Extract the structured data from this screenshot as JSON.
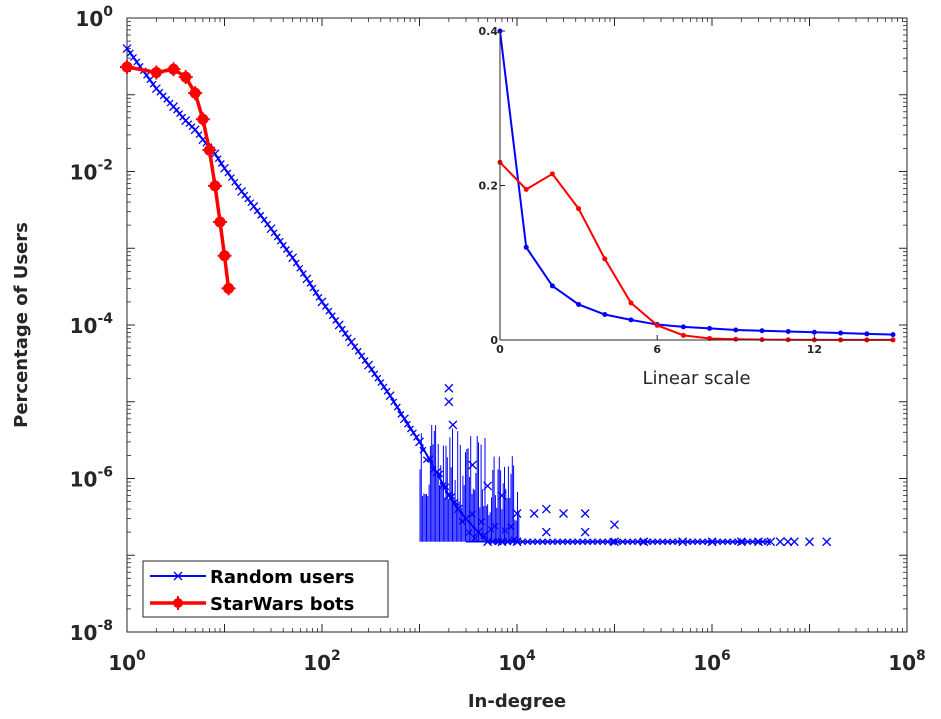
{
  "chart_data": [
    {
      "type": "line",
      "xlabel": "In-degree",
      "ylabel": "Percentage of Users",
      "xscale": "log",
      "yscale": "log",
      "xlim": [
        1,
        100000000
      ],
      "ylim": [
        1e-08,
        1
      ],
      "x_ticks": [
        {
          "base": "10",
          "exp": "0",
          "value": 1
        },
        {
          "base": "10",
          "exp": "2",
          "value": 100
        },
        {
          "base": "10",
          "exp": "4",
          "value": 10000
        },
        {
          "base": "10",
          "exp": "6",
          "value": 1000000
        },
        {
          "base": "10",
          "exp": "8",
          "value": 100000000
        }
      ],
      "y_ticks": [
        {
          "base": "10",
          "exp": "0",
          "value": 1
        },
        {
          "base": "10",
          "exp": "-2",
          "value": 0.01
        },
        {
          "base": "10",
          "exp": "-4",
          "value": 0.0001
        },
        {
          "base": "10",
          "exp": "-6",
          "value": 1e-06
        },
        {
          "base": "10",
          "exp": "-8",
          "value": 1e-08
        }
      ],
      "grid": false,
      "legend_position": "bottom-left",
      "series": [
        {
          "name": "Random users",
          "color": "#0000ff",
          "marker": "x",
          "x": [
            1,
            2,
            3,
            4,
            5,
            6,
            8,
            10,
            15,
            20,
            30,
            50,
            70,
            100,
            150,
            200,
            300,
            500,
            700,
            1000,
            1500,
            2000,
            2500,
            3000,
            4000,
            5000,
            7000,
            10000
          ],
          "y": [
            0.4,
            0.12,
            0.07,
            0.046,
            0.035,
            0.026,
            0.017,
            0.011,
            0.0055,
            0.0035,
            0.0018,
            0.00075,
            0.0004,
            0.0002,
            0.0001,
            6e-05,
            3e-05,
            1.2e-05,
            6e-06,
            3e-06,
            1.2e-06,
            6e-07,
            4e-07,
            3e-07,
            2e-07,
            1.5e-07,
            1.5e-07,
            1.5e-07
          ]
        },
        {
          "name": "StarWars bots",
          "color": "#ff0000",
          "marker": "o",
          "x": [
            1,
            2,
            3,
            4,
            5,
            6,
            7,
            8,
            9,
            10,
            11
          ],
          "y": [
            0.23,
            0.195,
            0.215,
            0.17,
            0.105,
            0.048,
            0.019,
            0.0065,
            0.0022,
            0.0008,
            0.0003
          ]
        }
      ],
      "scatter_points": {
        "color": "#0000ff",
        "marker": "x",
        "x": [
          2000,
          2000,
          2200,
          3500,
          5000,
          7000,
          10000,
          15000,
          20000,
          30000,
          50000,
          100000,
          20000,
          50000,
          100000,
          200000,
          500000,
          1000000,
          2000000,
          3000000,
          5000000,
          7000000,
          10000000,
          15000000,
          6000000,
          4000000
        ],
        "y": [
          1.5e-05,
          1e-05,
          5e-06,
          1.5e-06,
          8e-07,
          6e-07,
          3.5e-07,
          3.5e-07,
          4e-07,
          3.5e-07,
          3.5e-07,
          2.5e-07,
          2e-07,
          2e-07,
          1.5e-07,
          1.5e-07,
          1.5e-07,
          1.5e-07,
          1.5e-07,
          1.5e-07,
          1.5e-07,
          1.5e-07,
          1.5e-07,
          1.5e-07,
          1.5e-07,
          1.5e-07
        ]
      }
    },
    {
      "type": "line",
      "inset": true,
      "xlabel": "Linear scale",
      "ylabel": "",
      "xlim": [
        0,
        15
      ],
      "ylim": [
        0,
        0.4
      ],
      "x_ticks": [
        "0",
        "6",
        "12"
      ],
      "y_ticks": [
        "0",
        "0.2",
        "0.4"
      ],
      "series": [
        {
          "name": "Random users",
          "color": "#0000ff",
          "x": [
            0,
            1,
            2,
            3,
            4,
            5,
            6,
            7,
            8,
            9,
            10,
            11,
            12,
            13,
            14,
            15
          ],
          "y": [
            0.4,
            0.12,
            0.07,
            0.046,
            0.033,
            0.026,
            0.02,
            0.017,
            0.015,
            0.013,
            0.012,
            0.011,
            0.01,
            0.009,
            0.008,
            0.007
          ]
        },
        {
          "name": "StarWars bots",
          "color": "#ff0000",
          "x": [
            0,
            1,
            2,
            3,
            4,
            5,
            6,
            7,
            8,
            9,
            10,
            11,
            12,
            13,
            14,
            15
          ],
          "y": [
            0.23,
            0.195,
            0.215,
            0.17,
            0.105,
            0.048,
            0.019,
            0.006,
            0.002,
            0.001,
            0.0005,
            0.0003,
            0.0002,
            0.0001,
            0.0001,
            0.0001
          ]
        }
      ]
    }
  ]
}
